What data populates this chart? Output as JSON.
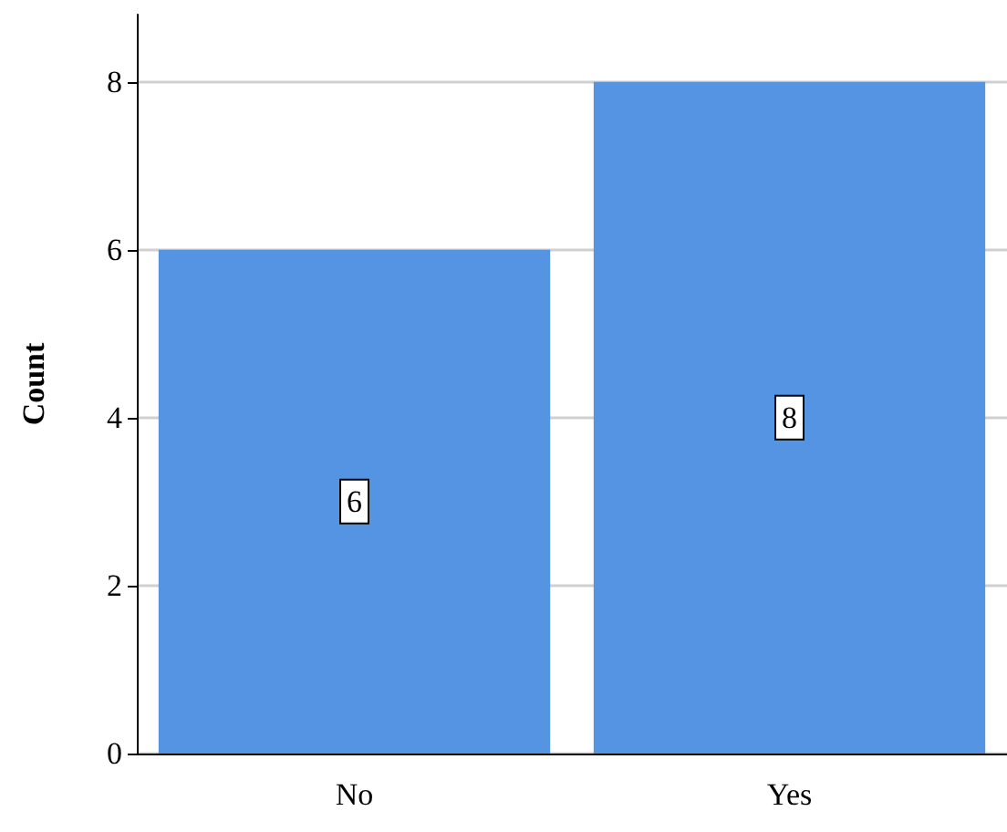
{
  "chart_data": {
    "type": "bar",
    "ylabel": "Count",
    "categories": [
      "No",
      "Yes"
    ],
    "values": [
      6,
      8
    ],
    "color": "#5594e2",
    "ylim": [
      0,
      8.8
    ],
    "yticks": [
      0,
      2,
      4,
      6,
      8
    ],
    "grid": "y",
    "data_labels": true
  }
}
